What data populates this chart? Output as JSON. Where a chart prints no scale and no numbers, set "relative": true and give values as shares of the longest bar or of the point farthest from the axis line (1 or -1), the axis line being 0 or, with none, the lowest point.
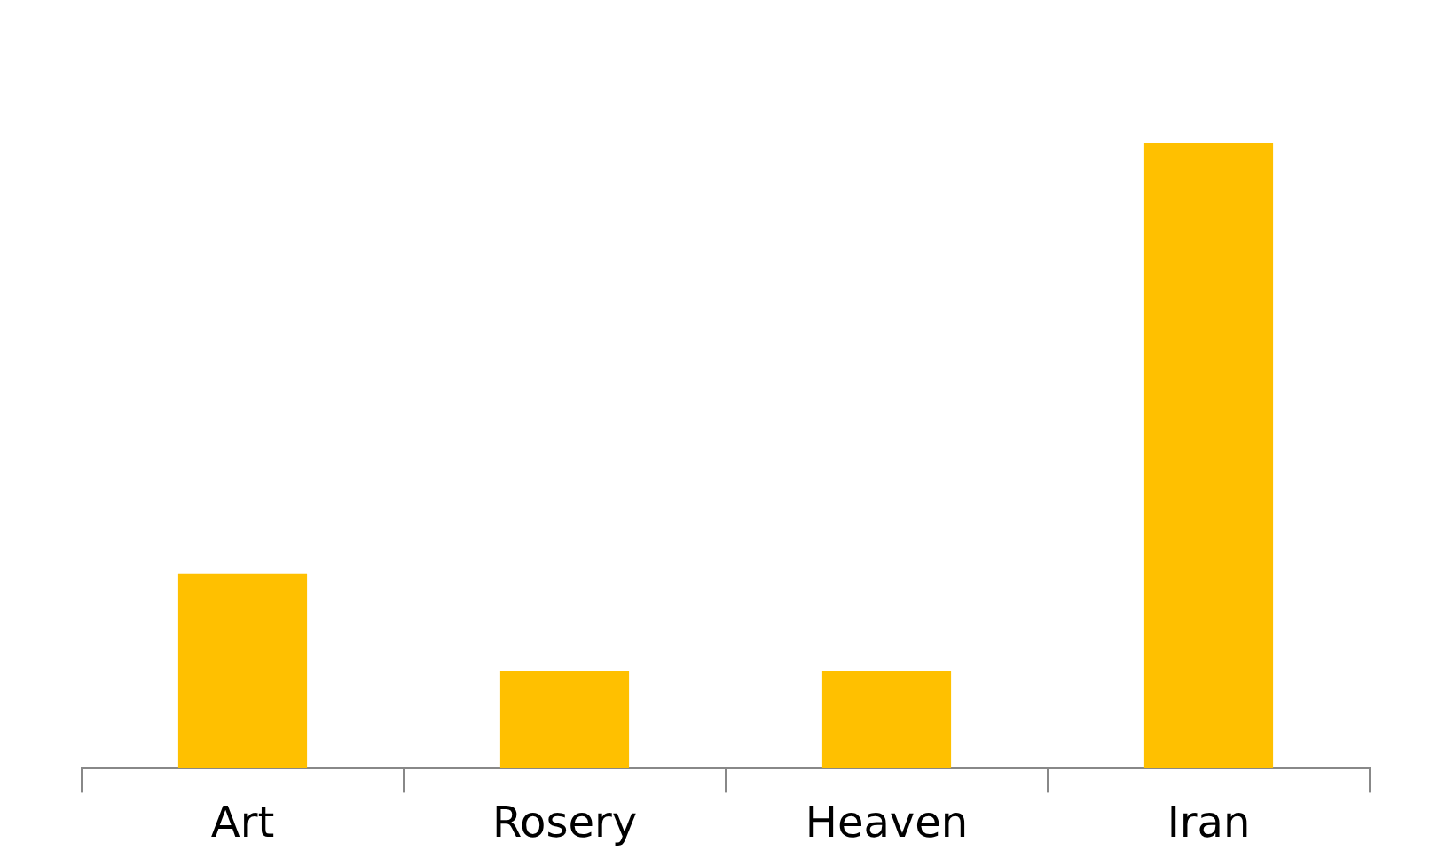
{
  "chart_data": {
    "type": "bar",
    "relative": true,
    "categories": [
      "Art",
      "Rosery",
      "Heaven",
      "Iran"
    ],
    "values": [
      0.31,
      0.155,
      0.155,
      1
    ],
    "color": "#ffc000",
    "legend": false
  }
}
